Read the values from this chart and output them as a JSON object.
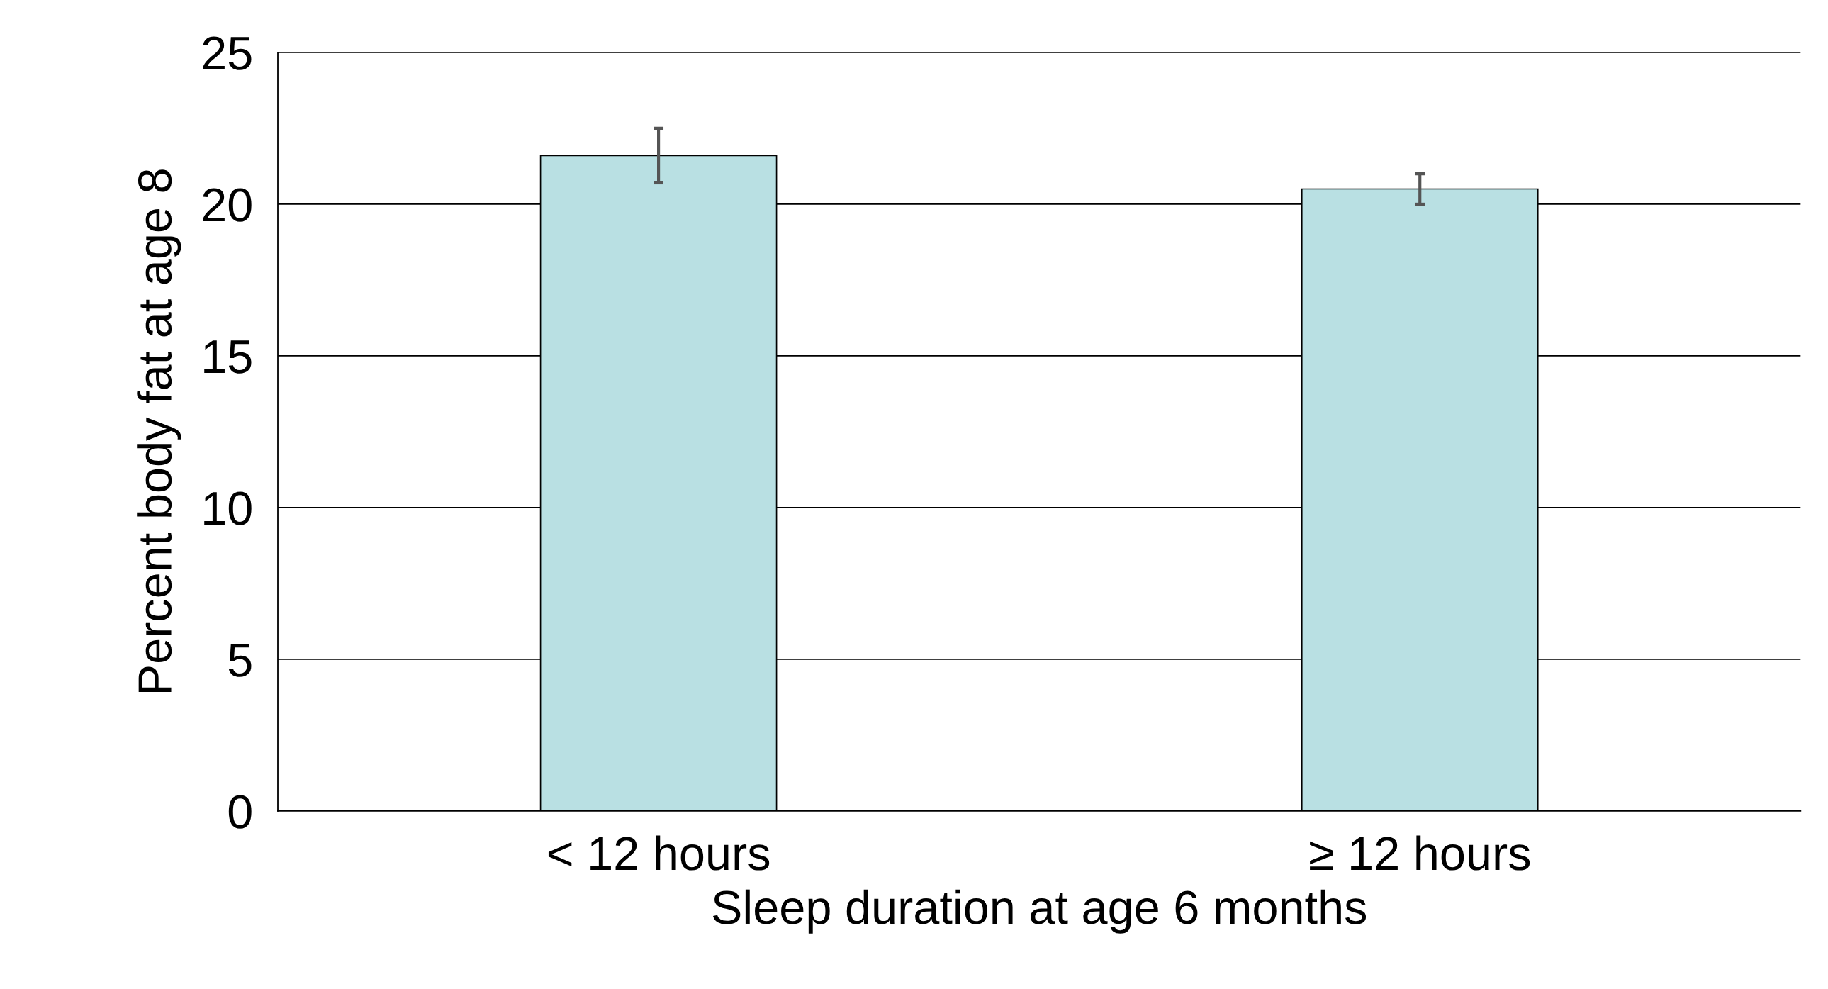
{
  "chart_data": {
    "type": "bar",
    "xlabel": "Sleep duration at age 6 months",
    "ylabel": "Percent body fat at age 8",
    "categories": [
      "< 12 hours",
      "≥ 12 hours"
    ],
    "values": [
      21.6,
      20.5
    ],
    "errors": [
      0.9,
      0.5
    ],
    "color": "#b9e0e3",
    "ylim": [
      0,
      25
    ],
    "yticks": [
      0,
      5,
      10,
      15,
      20,
      25
    ],
    "grid": "y",
    "legend": false
  }
}
